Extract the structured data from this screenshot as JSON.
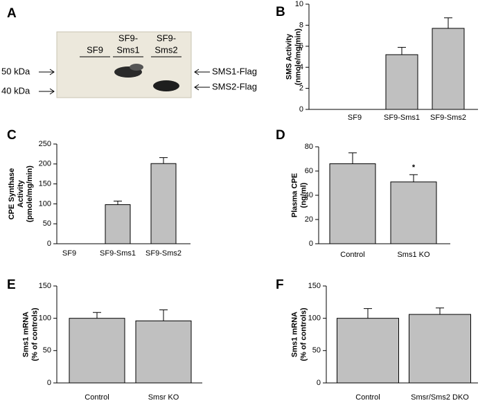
{
  "blot": {
    "panel": "A",
    "lanes": [
      [
        "SF9"
      ],
      [
        "SF9-",
        "Sms1"
      ],
      [
        "SF9-",
        "Sms2"
      ]
    ],
    "markers": [
      "50 kDa",
      "40 kDa"
    ],
    "bands": [
      "SMS1-Flag",
      "SMS2-Flag"
    ]
  },
  "chart_data": [
    {
      "type": "bar",
      "panel": "B",
      "ylabel": [
        "SMS Activity",
        "(nmole/mg/min)"
      ],
      "categories": [
        "SF9",
        "SF9-Sms1",
        "SF9-Sms2"
      ],
      "values": [
        0,
        5.2,
        7.7
      ],
      "errors": [
        0,
        0.7,
        1.0
      ],
      "color": "#c0c0c0",
      "ylim": [
        0,
        10
      ],
      "yticks": [
        0,
        2,
        4,
        6,
        8,
        10
      ]
    },
    {
      "type": "bar",
      "panel": "C",
      "ylabel": [
        "CPE Synthase",
        "Activity",
        "(pmole/mg/min)"
      ],
      "categories": [
        "SF9",
        "SF9-Sms1",
        "SF9-Sms2"
      ],
      "values": [
        0,
        98,
        201
      ],
      "errors": [
        0,
        9,
        15
      ],
      "color": "#c0c0c0",
      "ylim": [
        0,
        250
      ],
      "yticks": [
        0,
        50,
        100,
        150,
        200,
        250
      ]
    },
    {
      "type": "bar",
      "panel": "D",
      "ylabel": [
        "Plasma CPE",
        "(ng/ml)"
      ],
      "categories": [
        "Control",
        "Sms1 KO"
      ],
      "values": [
        66,
        51
      ],
      "errors": [
        9,
        6
      ],
      "annotation": "*",
      "color": "#c0c0c0",
      "ylim": [
        0,
        80
      ],
      "yticks": [
        0,
        20,
        40,
        60,
        80
      ]
    },
    {
      "type": "bar",
      "panel": "E",
      "ylabel": [
        "Sms1 mRNA",
        "(% of controls)"
      ],
      "categories": [
        "Control",
        "Smsr KO"
      ],
      "values": [
        100,
        96
      ],
      "errors": [
        9,
        17
      ],
      "color": "#c0c0c0",
      "ylim": [
        0,
        150
      ],
      "yticks": [
        0,
        50,
        100,
        150
      ]
    },
    {
      "type": "bar",
      "panel": "F",
      "ylabel": [
        "Sms1 mRNA",
        "(% of controls)"
      ],
      "categories": [
        "Control",
        "Smsr/Sms2 DKO"
      ],
      "values": [
        100,
        106
      ],
      "errors": [
        15,
        10
      ],
      "color": "#c0c0c0",
      "ylim": [
        0,
        150
      ],
      "yticks": [
        0,
        50,
        100,
        150
      ]
    }
  ]
}
